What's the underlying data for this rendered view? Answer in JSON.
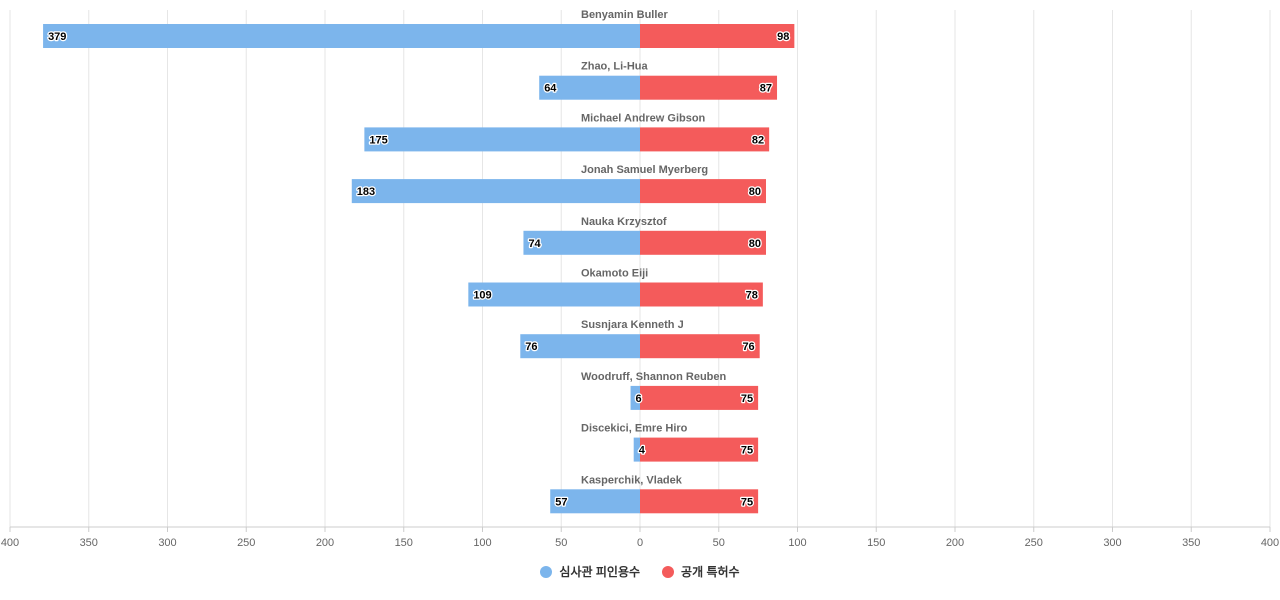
{
  "chart_data": {
    "type": "bar",
    "orientation": "horizontal-diverging",
    "categories": [
      "Benyamin Buller",
      "Zhao, Li-Hua",
      "Michael Andrew Gibson",
      "Jonah Samuel Myerberg",
      "Nauka Krzysztof",
      "Okamoto Eiji",
      "Susnjara Kenneth J",
      "Woodruff, Shannon Reuben",
      "Discekici, Emre Hiro",
      "Kasperchik, Vladek"
    ],
    "series": [
      {
        "name": "심사관 피인용수",
        "color": "#7cb5ec",
        "side": "left",
        "values": [
          379,
          64,
          175,
          183,
          74,
          109,
          76,
          6,
          4,
          57
        ]
      },
      {
        "name": "공개 특허수",
        "color": "#f45b5b",
        "side": "right",
        "values": [
          98,
          87,
          82,
          80,
          80,
          78,
          76,
          75,
          75,
          75
        ]
      }
    ],
    "xlim": [
      -400,
      400
    ],
    "x_ticks": [
      "400",
      "350",
      "300",
      "250",
      "200",
      "150",
      "100",
      "50",
      "0",
      "50",
      "100",
      "150",
      "200",
      "250",
      "300",
      "350",
      "400"
    ],
    "grid": true,
    "legend_position": "bottom-center"
  }
}
